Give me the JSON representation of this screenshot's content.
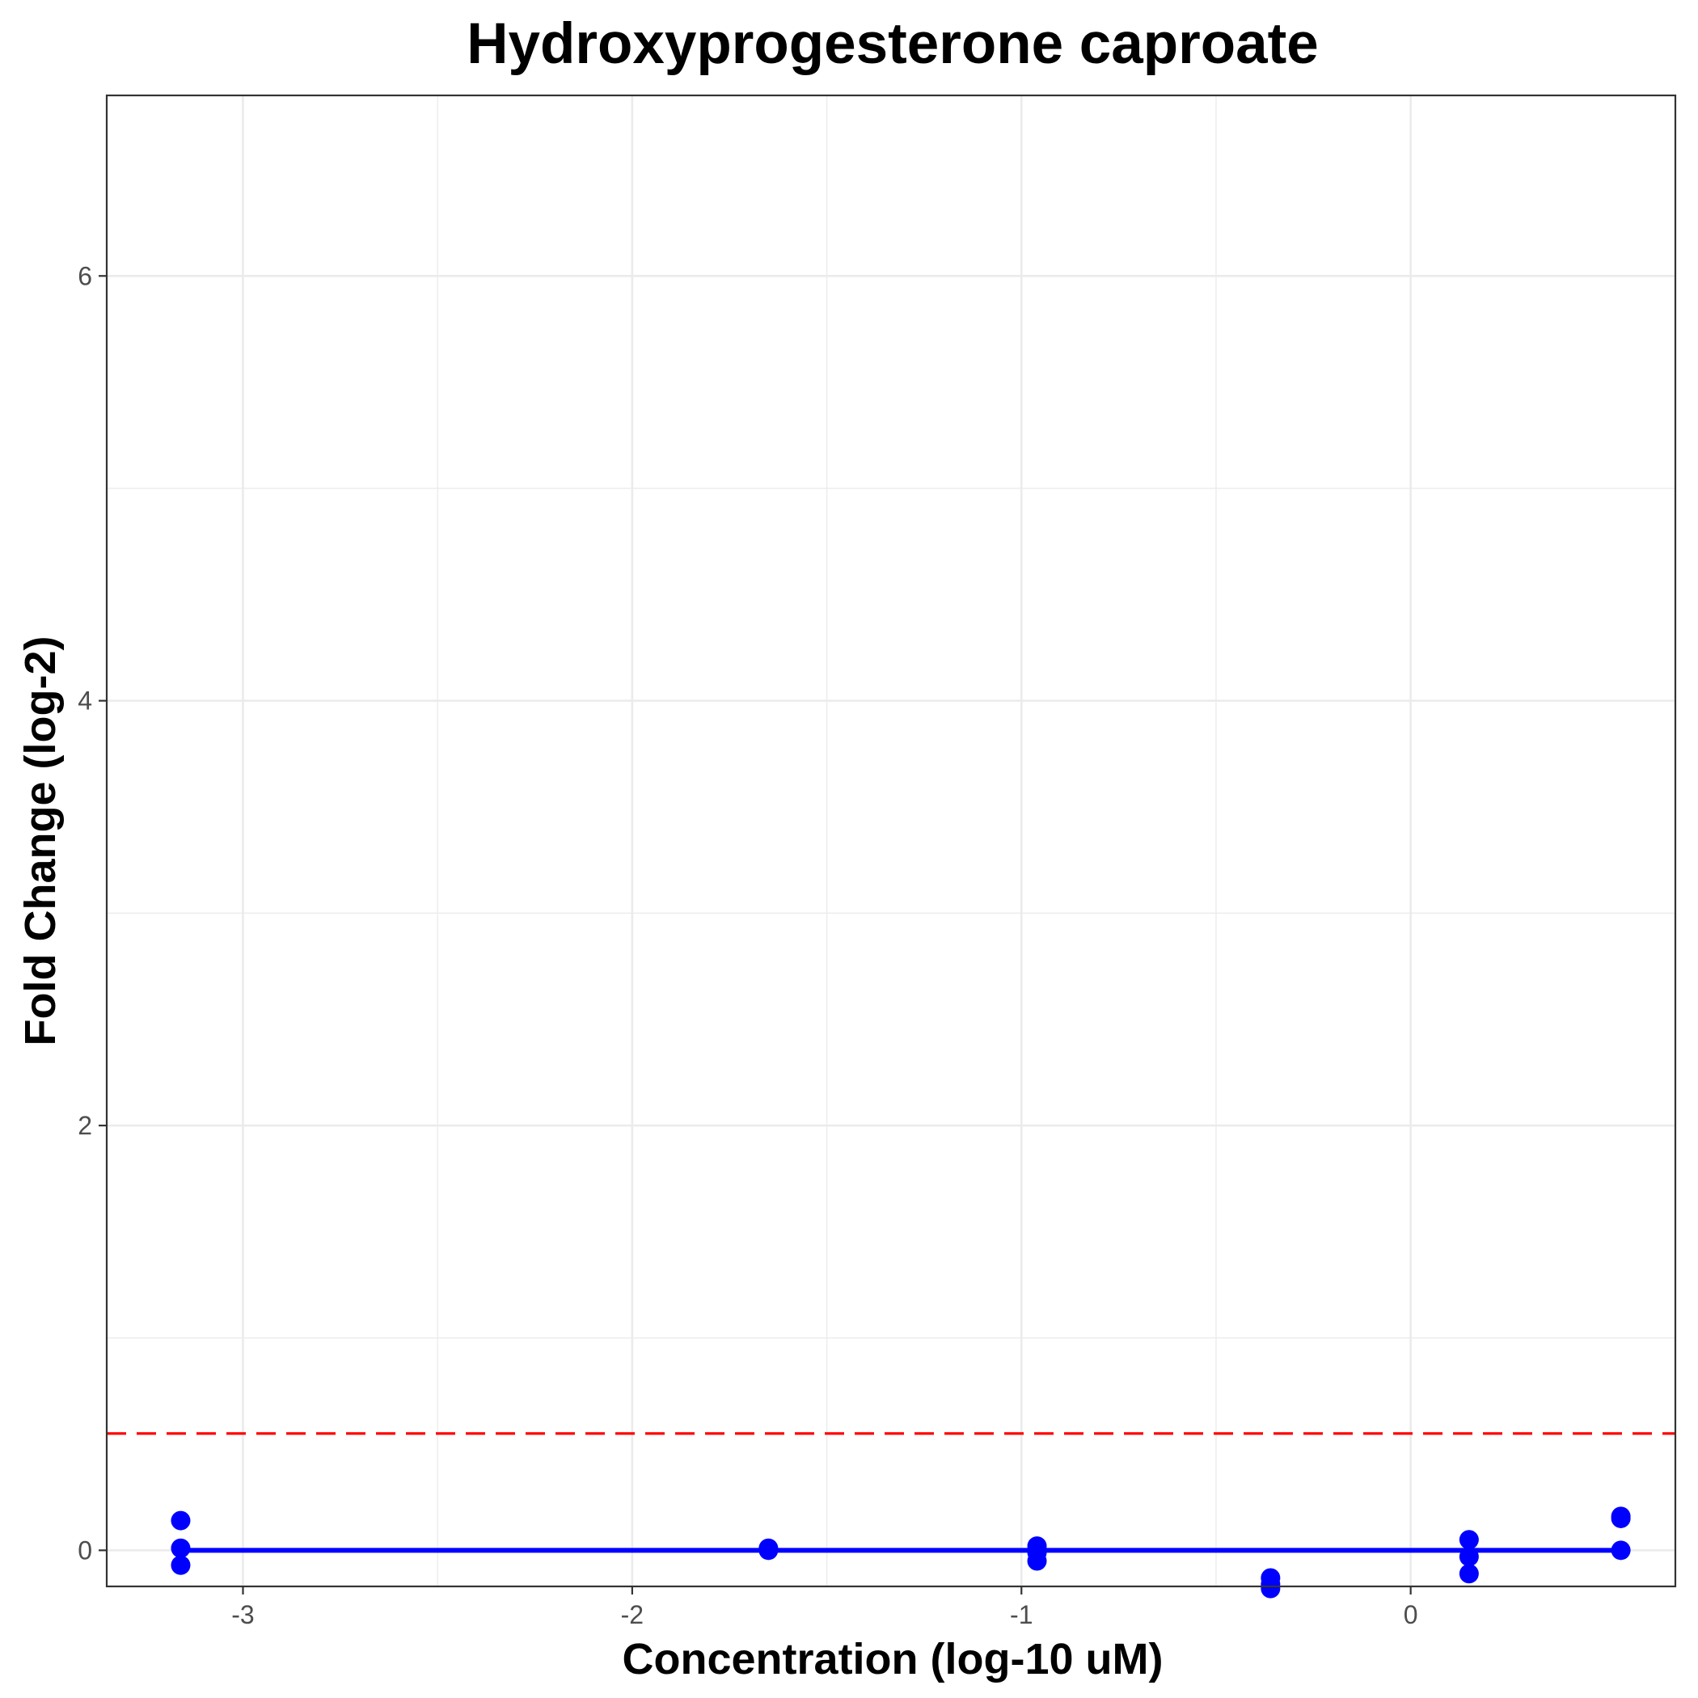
{
  "chart_data": {
    "type": "scatter",
    "title": "Hydroxyprogesterone caproate",
    "xlabel": "Concentration (log-10 uM)",
    "ylabel": "Fold Change (log-2)",
    "xlim": [
      -3.35,
      0.68
    ],
    "ylim": [
      -0.17,
      6.85
    ],
    "x_ticks": [
      -3,
      -2,
      -1,
      0
    ],
    "x_tick_labels": [
      "-3",
      "-2",
      "-1",
      "0"
    ],
    "y_ticks": [
      0,
      2,
      4,
      6
    ],
    "y_tick_labels": [
      "0",
      "2",
      "4",
      "6"
    ],
    "grid": true,
    "colors": {
      "points": "#0000ff",
      "fit_line": "#0000ff",
      "threshold": "#ff0000",
      "grid": "#ebebeb",
      "panel_border": "#333333"
    },
    "threshold": {
      "y": 0.55,
      "style": "dashed"
    },
    "fit_line": {
      "x": [
        -3.16,
        0.54
      ],
      "y": [
        0,
        0
      ]
    },
    "series": [
      {
        "points": [
          {
            "x": -3.16,
            "y": 0.14
          },
          {
            "x": -3.16,
            "y": 0.01
          },
          {
            "x": -3.16,
            "y": -0.07
          },
          {
            "x": -1.65,
            "y": 0.01
          },
          {
            "x": -1.65,
            "y": 0.0
          },
          {
            "x": -0.96,
            "y": 0.02
          },
          {
            "x": -0.96,
            "y": -0.01
          },
          {
            "x": -0.96,
            "y": -0.05
          },
          {
            "x": -0.36,
            "y": -0.13
          },
          {
            "x": -0.36,
            "y": -0.16
          },
          {
            "x": -0.36,
            "y": -0.18
          },
          {
            "x": 0.15,
            "y": 0.05
          },
          {
            "x": 0.15,
            "y": -0.03
          },
          {
            "x": 0.15,
            "y": -0.11
          },
          {
            "x": 0.54,
            "y": 0.15
          },
          {
            "x": 0.54,
            "y": 0.16
          },
          {
            "x": 0.54,
            "y": 0.0
          }
        ]
      }
    ]
  }
}
